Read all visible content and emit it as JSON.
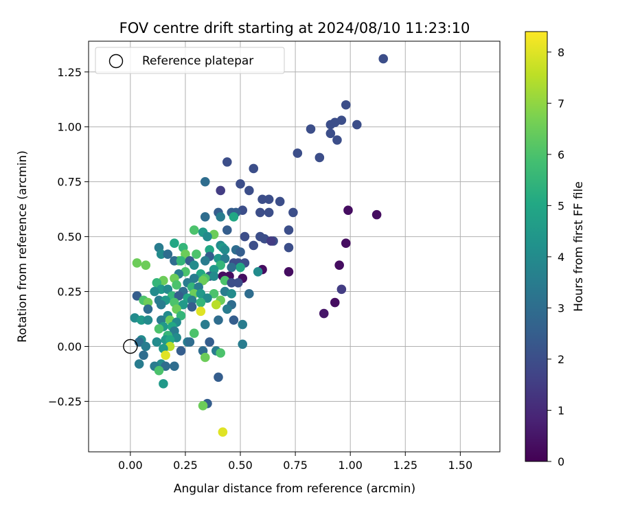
{
  "chart_data": {
    "type": "scatter",
    "title": "FOV centre drift starting at 2024/08/10 11:23:10",
    "xlabel": "Angular distance from reference (arcmin)",
    "ylabel": "Rotation from reference (arcmin)",
    "xlim": [
      -0.19,
      1.68
    ],
    "ylim": [
      -0.48,
      1.39
    ],
    "x_ticks": [
      0.0,
      0.25,
      0.5,
      0.75,
      1.0,
      1.25,
      1.5
    ],
    "x_tick_labels": [
      "0.00",
      "0.25",
      "0.50",
      "0.75",
      "1.00",
      "1.25",
      "1.50"
    ],
    "y_ticks": [
      -0.25,
      0.0,
      0.25,
      0.5,
      0.75,
      1.0,
      1.25
    ],
    "y_tick_labels": [
      "−0.25",
      "0.00",
      "0.25",
      "0.50",
      "0.75",
      "1.00",
      "1.25"
    ],
    "grid": true,
    "legend": {
      "position": "top-left",
      "entries": [
        {
          "label": "Reference platepar",
          "marker": "open-circle"
        }
      ]
    },
    "reference_point": {
      "x": 0.0,
      "y": 0.0
    },
    "colorbar": {
      "label": "Hours from first FF file",
      "colormap": "viridis",
      "range": [
        0,
        8.4
      ],
      "ticks": [
        0,
        1,
        2,
        3,
        4,
        5,
        6,
        7,
        8
      ],
      "tick_labels": [
        "0",
        "1",
        "2",
        "3",
        "4",
        "5",
        "6",
        "7",
        "8"
      ]
    },
    "points": [
      [
        1.15,
        1.31,
        2.0
      ],
      [
        0.98,
        1.1,
        2.0
      ],
      [
        0.93,
        1.02,
        2.0
      ],
      [
        0.96,
        1.03,
        2.0
      ],
      [
        0.91,
        1.01,
        2.0
      ],
      [
        1.03,
        1.01,
        2.0
      ],
      [
        0.82,
        0.99,
        2.0
      ],
      [
        0.91,
        0.97,
        2.0
      ],
      [
        0.94,
        0.94,
        2.0
      ],
      [
        0.76,
        0.88,
        2.0
      ],
      [
        0.86,
        0.86,
        2.0
      ],
      [
        0.44,
        0.84,
        2.0
      ],
      [
        0.56,
        0.81,
        2.0
      ],
      [
        0.34,
        0.75,
        3.0
      ],
      [
        0.5,
        0.74,
        2.0
      ],
      [
        0.41,
        0.71,
        1.5
      ],
      [
        0.54,
        0.71,
        2.0
      ],
      [
        0.6,
        0.67,
        2.0
      ],
      [
        0.63,
        0.67,
        2.0
      ],
      [
        0.68,
        0.66,
        2.0
      ],
      [
        0.51,
        0.62,
        2.0
      ],
      [
        0.99,
        0.62,
        0.3
      ],
      [
        0.4,
        0.61,
        2.5
      ],
      [
        0.46,
        0.61,
        2.5
      ],
      [
        0.48,
        0.61,
        2.5
      ],
      [
        0.59,
        0.61,
        2.0
      ],
      [
        0.63,
        0.61,
        2.0
      ],
      [
        0.74,
        0.61,
        2.0
      ],
      [
        1.12,
        0.6,
        0.3
      ],
      [
        0.34,
        0.59,
        3.0
      ],
      [
        0.41,
        0.59,
        3.5
      ],
      [
        0.47,
        0.59,
        5.0
      ],
      [
        0.44,
        0.53,
        2.5
      ],
      [
        0.72,
        0.53,
        2.0
      ],
      [
        0.29,
        0.53,
        6.0
      ],
      [
        0.33,
        0.52,
        4.5
      ],
      [
        0.38,
        0.51,
        6.5
      ],
      [
        0.35,
        0.5,
        4.0
      ],
      [
        0.52,
        0.5,
        2.0
      ],
      [
        0.59,
        0.5,
        2.0
      ],
      [
        0.61,
        0.49,
        2.0
      ],
      [
        0.65,
        0.48,
        2.0
      ],
      [
        0.64,
        0.48,
        1.5
      ],
      [
        0.98,
        0.47,
        0.3
      ],
      [
        0.2,
        0.47,
        5.0
      ],
      [
        0.56,
        0.46,
        2.0
      ],
      [
        0.41,
        0.46,
        4.0
      ],
      [
        0.42,
        0.45,
        4.5
      ],
      [
        0.72,
        0.45,
        2.0
      ],
      [
        0.13,
        0.45,
        3.5
      ],
      [
        0.24,
        0.45,
        5.5
      ],
      [
        0.43,
        0.44,
        4.0
      ],
      [
        0.36,
        0.44,
        5.0
      ],
      [
        0.48,
        0.44,
        3.0
      ],
      [
        0.5,
        0.43,
        2.5
      ],
      [
        0.25,
        0.42,
        6.5
      ],
      [
        0.14,
        0.42,
        4.0
      ],
      [
        0.17,
        0.42,
        3.0
      ],
      [
        0.3,
        0.42,
        6.0
      ],
      [
        0.36,
        0.41,
        2.5
      ],
      [
        0.4,
        0.4,
        4.5
      ],
      [
        0.43,
        0.4,
        3.5
      ],
      [
        0.22,
        0.39,
        6.5
      ],
      [
        0.2,
        0.39,
        3.0
      ],
      [
        0.23,
        0.39,
        5.5
      ],
      [
        0.27,
        0.39,
        2.5
      ],
      [
        0.34,
        0.39,
        3.5
      ],
      [
        0.03,
        0.38,
        6.5
      ],
      [
        0.47,
        0.38,
        2.0
      ],
      [
        0.49,
        0.38,
        2.0
      ],
      [
        0.52,
        0.38,
        2.0
      ],
      [
        0.07,
        0.37,
        6.5
      ],
      [
        0.95,
        0.37,
        0.3
      ],
      [
        0.29,
        0.37,
        4.0
      ],
      [
        0.41,
        0.37,
        5.5
      ],
      [
        0.5,
        0.36,
        5.0
      ],
      [
        0.46,
        0.36,
        3.0
      ],
      [
        0.38,
        0.35,
        4.5
      ],
      [
        0.6,
        0.35,
        0.3
      ],
      [
        0.72,
        0.34,
        0.3
      ],
      [
        0.58,
        0.34,
        4.0
      ],
      [
        0.25,
        0.34,
        6.0
      ],
      [
        0.32,
        0.33,
        5.0
      ],
      [
        0.22,
        0.33,
        3.5
      ],
      [
        0.36,
        0.32,
        2.5
      ],
      [
        0.38,
        0.32,
        4.0
      ],
      [
        0.42,
        0.32,
        0.3
      ],
      [
        0.45,
        0.32,
        0.3
      ],
      [
        0.51,
        0.31,
        0.3
      ],
      [
        0.29,
        0.31,
        3.5
      ],
      [
        0.34,
        0.31,
        6.0
      ],
      [
        0.2,
        0.31,
        6.5
      ],
      [
        0.15,
        0.3,
        6.5
      ],
      [
        0.33,
        0.3,
        6.5
      ],
      [
        0.43,
        0.3,
        6.0
      ],
      [
        0.46,
        0.29,
        2.0
      ],
      [
        0.49,
        0.29,
        2.0
      ],
      [
        0.12,
        0.29,
        5.5
      ],
      [
        0.26,
        0.29,
        3.5
      ],
      [
        0.21,
        0.28,
        6.0
      ],
      [
        0.28,
        0.27,
        5.5
      ],
      [
        0.31,
        0.27,
        3.5
      ],
      [
        0.14,
        0.26,
        4.5
      ],
      [
        0.96,
        0.26,
        1.5
      ],
      [
        0.17,
        0.26,
        4.0
      ],
      [
        0.43,
        0.25,
        3.5
      ],
      [
        0.11,
        0.25,
        4.0
      ],
      [
        0.24,
        0.25,
        3.0
      ],
      [
        0.29,
        0.24,
        6.5
      ],
      [
        0.32,
        0.24,
        4.5
      ],
      [
        0.38,
        0.24,
        6.0
      ],
      [
        0.46,
        0.24,
        4.0
      ],
      [
        0.54,
        0.24,
        3.0
      ],
      [
        0.03,
        0.23,
        2.5
      ],
      [
        0.19,
        0.23,
        5.5
      ],
      [
        0.22,
        0.23,
        2.5
      ],
      [
        0.26,
        0.22,
        5.0
      ],
      [
        0.35,
        0.22,
        4.0
      ],
      [
        0.06,
        0.21,
        6.0
      ],
      [
        0.13,
        0.21,
        3.5
      ],
      [
        0.16,
        0.21,
        4.5
      ],
      [
        0.28,
        0.21,
        3.5
      ],
      [
        0.41,
        0.21,
        6.5
      ],
      [
        0.08,
        0.2,
        6.5
      ],
      [
        0.2,
        0.2,
        6.0
      ],
      [
        0.32,
        0.2,
        5.5
      ],
      [
        0.93,
        0.2,
        0.3
      ],
      [
        0.14,
        0.19,
        3.5
      ],
      [
        0.24,
        0.19,
        4.5
      ],
      [
        0.39,
        0.19,
        7.5
      ],
      [
        0.46,
        0.19,
        3.0
      ],
      [
        0.28,
        0.18,
        2.5
      ],
      [
        0.21,
        0.17,
        6.5
      ],
      [
        0.08,
        0.17,
        3.0
      ],
      [
        0.44,
        0.17,
        3.5
      ],
      [
        0.32,
        0.16,
        8.0
      ],
      [
        0.88,
        0.15,
        0.5
      ],
      [
        0.17,
        0.14,
        4.0
      ],
      [
        0.23,
        0.14,
        5.5
      ],
      [
        0.02,
        0.13,
        4.0
      ],
      [
        0.05,
        0.12,
        4.5
      ],
      [
        0.08,
        0.12,
        4.0
      ],
      [
        0.14,
        0.12,
        3.5
      ],
      [
        0.18,
        0.12,
        6.5
      ],
      [
        0.4,
        0.12,
        3.0
      ],
      [
        0.47,
        0.12,
        2.5
      ],
      [
        0.21,
        0.11,
        4.0
      ],
      [
        0.34,
        0.1,
        3.5
      ],
      [
        0.51,
        0.1,
        3.5
      ],
      [
        0.15,
        0.09,
        4.5
      ],
      [
        0.19,
        0.09,
        5.0
      ],
      [
        0.13,
        0.08,
        6.0
      ],
      [
        0.2,
        0.07,
        3.5
      ],
      [
        0.29,
        0.06,
        6.0
      ],
      [
        0.17,
        0.05,
        5.5
      ],
      [
        0.21,
        0.04,
        4.0
      ],
      [
        0.05,
        0.03,
        4.0
      ],
      [
        0.16,
        0.03,
        4.5
      ],
      [
        0.18,
        0.03,
        5.0
      ],
      [
        0.04,
        0.02,
        3.0
      ],
      [
        0.12,
        0.02,
        4.0
      ],
      [
        0.26,
        0.02,
        3.5
      ],
      [
        0.27,
        0.02,
        3.0
      ],
      [
        0.36,
        0.02,
        2.5
      ],
      [
        0.51,
        0.01,
        3.5
      ],
      [
        0.07,
        0.0,
        3.5
      ],
      [
        0.18,
        0.0,
        7.5
      ],
      [
        0.15,
        -0.01,
        4.5
      ],
      [
        0.23,
        -0.02,
        2.5
      ],
      [
        0.33,
        -0.02,
        3.0
      ],
      [
        0.39,
        -0.02,
        3.5
      ],
      [
        0.41,
        -0.03,
        6.0
      ],
      [
        0.16,
        -0.04,
        8.0
      ],
      [
        0.06,
        -0.04,
        3.0
      ],
      [
        0.34,
        -0.05,
        6.5
      ],
      [
        0.04,
        -0.08,
        3.5
      ],
      [
        0.14,
        -0.08,
        4.0
      ],
      [
        0.11,
        -0.09,
        3.5
      ],
      [
        0.16,
        -0.09,
        3.0
      ],
      [
        0.2,
        -0.09,
        3.0
      ],
      [
        0.13,
        -0.11,
        6.0
      ],
      [
        0.4,
        -0.14,
        2.5
      ],
      [
        0.15,
        -0.17,
        4.5
      ],
      [
        0.35,
        -0.26,
        2.5
      ],
      [
        0.33,
        -0.27,
        6.5
      ],
      [
        0.42,
        -0.39,
        8.0
      ]
    ]
  }
}
